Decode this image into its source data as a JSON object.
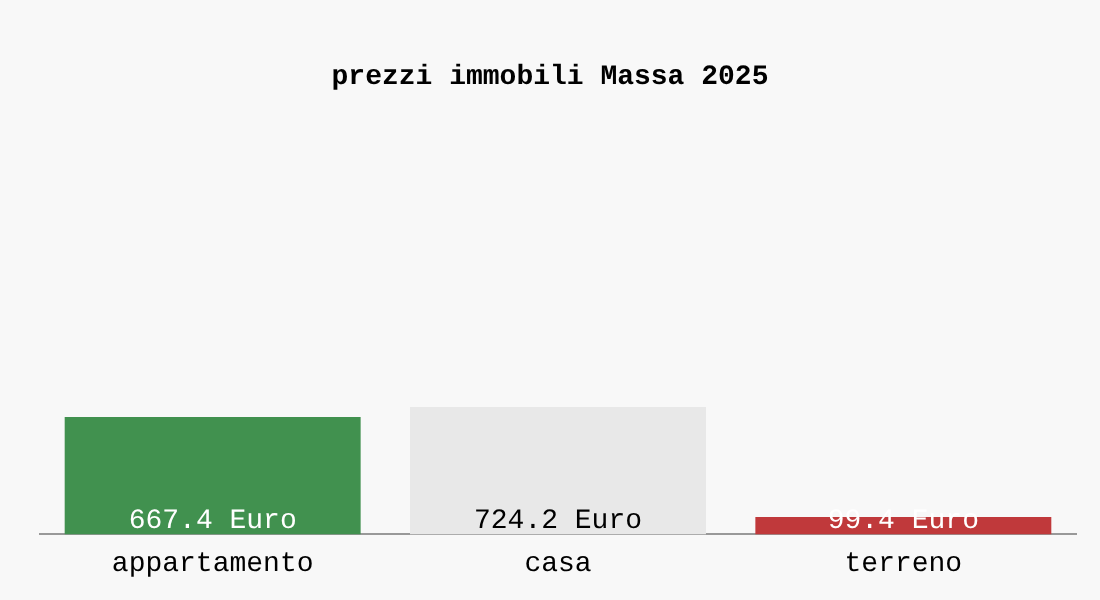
{
  "chart_data": {
    "type": "bar",
    "title": "prezzi immobili Massa 2025",
    "categories": [
      "appartamento",
      "casa",
      "terreno"
    ],
    "values": [
      667.4,
      724.2,
      99.4
    ],
    "colors": [
      "#41914f",
      "#e8e8e8",
      "#c0393b"
    ],
    "value_labels": [
      "667.4 Euro",
      "724.2 Euro",
      "99.4 Euro"
    ],
    "relative": false,
    "grid": false,
    "legend": false
  }
}
